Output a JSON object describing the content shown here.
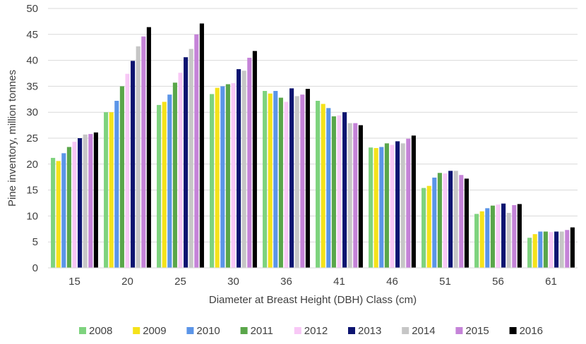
{
  "chart_data": {
    "type": "bar",
    "title": "",
    "xlabel": "Diameter at Breast Height (DBH) Class (cm)",
    "ylabel": "Pine inventory, million tonnes",
    "ylim": [
      0,
      50
    ],
    "yticks": [
      0,
      5,
      10,
      15,
      20,
      25,
      30,
      35,
      40,
      45,
      50
    ],
    "grid": true,
    "legend_position": "bottom",
    "categories": [
      "15",
      "20",
      "25",
      "30",
      "36",
      "41",
      "46",
      "51",
      "56",
      "61"
    ],
    "series": [
      {
        "name": "2008",
        "color": "#7ed37e",
        "values": [
          21.2,
          30.0,
          31.4,
          33.5,
          34.1,
          32.2,
          23.2,
          15.4,
          10.4,
          5.8
        ]
      },
      {
        "name": "2009",
        "color": "#f5e21a",
        "values": [
          20.6,
          30.0,
          32.0,
          34.7,
          33.6,
          31.6,
          23.1,
          15.8,
          10.9,
          6.5
        ]
      },
      {
        "name": "2010",
        "color": "#5b95e8",
        "values": [
          22.1,
          32.2,
          33.4,
          35.0,
          34.1,
          30.8,
          23.3,
          17.4,
          11.5,
          7.0
        ]
      },
      {
        "name": "2011",
        "color": "#5aa64a",
        "values": [
          23.3,
          35.0,
          35.7,
          35.4,
          32.8,
          29.2,
          24.0,
          18.3,
          12.0,
          7.0
        ]
      },
      {
        "name": "2012",
        "color": "#f8c8f6",
        "values": [
          24.3,
          37.4,
          37.6,
          35.6,
          32.0,
          29.4,
          23.7,
          18.2,
          12.2,
          6.9
        ]
      },
      {
        "name": "2013",
        "color": "#0d1470",
        "values": [
          25.0,
          39.9,
          40.6,
          38.3,
          34.6,
          30.0,
          24.4,
          18.7,
          12.4,
          7.0
        ]
      },
      {
        "name": "2014",
        "color": "#c6c6c6",
        "values": [
          25.7,
          42.7,
          42.2,
          38.0,
          33.1,
          27.9,
          24.0,
          18.7,
          10.6,
          7.0
        ]
      },
      {
        "name": "2015",
        "color": "#c583d8",
        "values": [
          25.8,
          44.6,
          45.0,
          40.5,
          33.4,
          27.9,
          24.9,
          17.9,
          12.1,
          7.3
        ]
      },
      {
        "name": "2016",
        "color": "#000000",
        "values": [
          26.1,
          46.4,
          47.1,
          41.8,
          34.5,
          27.5,
          25.5,
          17.2,
          12.3,
          7.8
        ]
      }
    ]
  }
}
